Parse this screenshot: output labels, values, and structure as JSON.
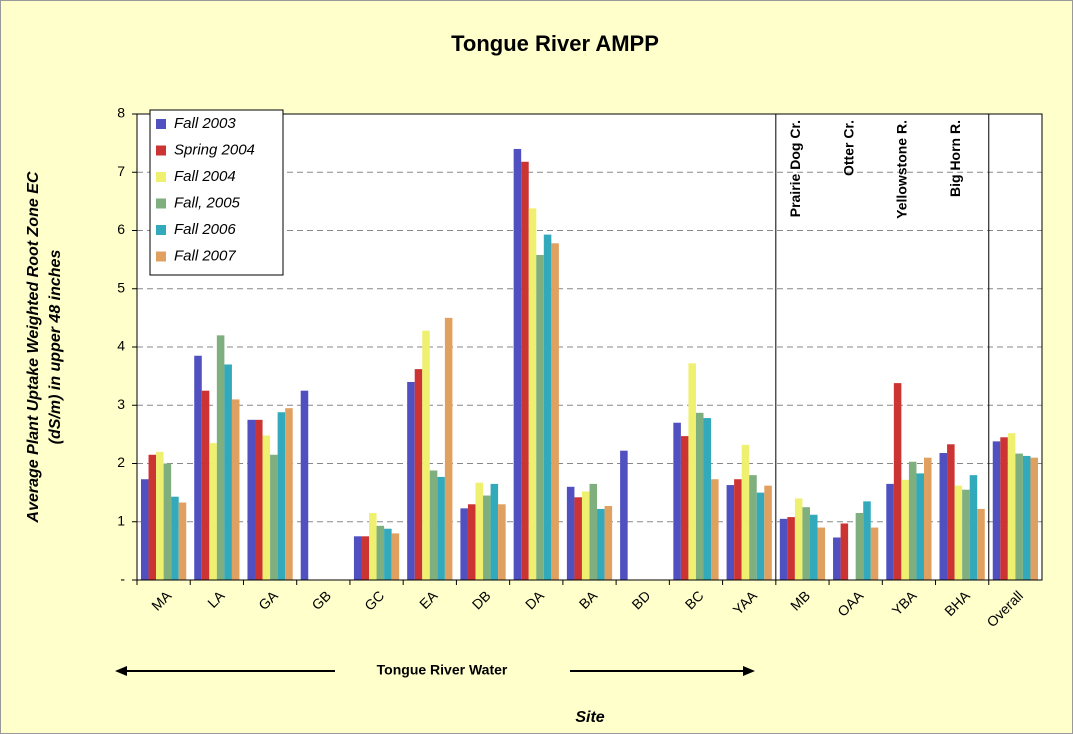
{
  "chart_data": {
    "type": "bar",
    "title": "Tongue River AMPP",
    "y_label": [
      "Average Plant Uptake Weighted Root Zone EC",
      "(dS/m) in upper 48 inches"
    ],
    "x_label": "Site",
    "region_label": "Tongue River Water",
    "annotations": [
      {
        "text": "Prairie Dog Cr.",
        "category": 12
      },
      {
        "text": "Otter Cr.",
        "category": 13
      },
      {
        "text": "Yellowstone R.",
        "category": 14
      },
      {
        "text": "Big Horn R.",
        "category": 15
      }
    ],
    "categories": [
      "MA",
      "LA",
      "GA",
      "GB",
      "GC",
      "EA",
      "DB",
      "DA",
      "BA",
      "BD",
      "BC",
      "YAA",
      "MB",
      "OAA",
      "YBA",
      "BHA",
      "Overall"
    ],
    "separators_after": [
      11,
      15
    ],
    "series": [
      {
        "name": "Fall 2003",
        "color": "#5050C0",
        "values": [
          1.73,
          3.85,
          2.75,
          3.25,
          0.75,
          3.4,
          1.23,
          7.4,
          1.6,
          2.22,
          2.7,
          1.63,
          1.05,
          0.73,
          1.65,
          2.18,
          2.38
        ]
      },
      {
        "name": "Spring 2004",
        "color": "#CC3333",
        "values": [
          2.15,
          3.25,
          2.75,
          null,
          0.75,
          3.62,
          1.3,
          7.18,
          1.42,
          null,
          2.47,
          1.73,
          1.08,
          0.97,
          3.38,
          2.33,
          2.45
        ]
      },
      {
        "name": "Fall 2004",
        "color": "#F0F070",
        "values": [
          2.2,
          2.35,
          2.48,
          null,
          1.15,
          4.28,
          1.67,
          6.38,
          1.52,
          null,
          3.72,
          2.32,
          1.4,
          null,
          1.72,
          1.62,
          2.52
        ]
      },
      {
        "name": "Fall, 2005",
        "color": "#7FAF7F",
        "values": [
          2.0,
          4.2,
          2.15,
          null,
          0.93,
          1.88,
          1.45,
          5.58,
          1.65,
          null,
          2.87,
          1.8,
          1.25,
          1.15,
          2.03,
          1.55,
          2.17
        ]
      },
      {
        "name": "Fall 2006",
        "color": "#33AABB",
        "values": [
          1.43,
          3.7,
          2.88,
          null,
          0.88,
          1.77,
          1.65,
          5.93,
          1.22,
          null,
          2.78,
          1.5,
          1.12,
          1.35,
          1.83,
          1.8,
          2.13
        ]
      },
      {
        "name": "Fall 2007",
        "color": "#E0A060",
        "values": [
          1.33,
          3.1,
          2.95,
          null,
          0.8,
          4.5,
          1.3,
          5.78,
          1.27,
          null,
          1.73,
          1.62,
          0.9,
          0.9,
          2.1,
          1.22,
          2.1
        ]
      }
    ],
    "ylim": [
      0,
      8
    ],
    "yticks": [
      {
        "value": 0,
        "label": "-"
      },
      1,
      2,
      3,
      4,
      5,
      6,
      7,
      8
    ],
    "grid": true,
    "legend": "upper-left"
  }
}
